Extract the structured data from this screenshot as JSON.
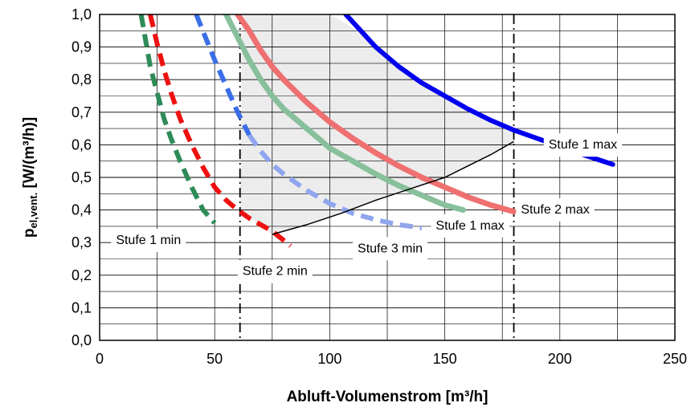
{
  "chart_data": {
    "type": "line",
    "title": "",
    "xlabel": "Abluft-Volumenstrom [m³/h]",
    "ylabel": {
      "main": "p",
      "sub": "el,vent.",
      "unit": " [W/(m³/h)]"
    },
    "xlim": [
      0,
      250
    ],
    "ylim": [
      0,
      1.0
    ],
    "xticks": [
      "0",
      "50",
      "100",
      "150",
      "200",
      "250"
    ],
    "yticks": [
      "0,0",
      "0,1",
      "0,2",
      "0,3",
      "0,4",
      "0,5",
      "0,6",
      "0,7",
      "0,8",
      "0,9",
      "1,0"
    ],
    "grid": true,
    "colors": {
      "blue_solid": "#0000ee",
      "red_solid": "#ee7070",
      "green_solid": "#88c09c",
      "blue_dashed_light": "#8fa5ee",
      "blue_dashed": "#3a6ee8",
      "red_dashed": "#ee1111",
      "green_dashed": "#2e8b57",
      "region": "#ececec",
      "envelope": "#000000"
    },
    "series": [
      {
        "style": "solid",
        "color": "blue_solid",
        "width": 6,
        "x": [
          107,
          120,
          130,
          140,
          150,
          160,
          170,
          180,
          190,
          200,
          210,
          223
        ],
        "y": [
          1.0,
          0.9,
          0.84,
          0.79,
          0.75,
          0.71,
          0.675,
          0.645,
          0.62,
          0.595,
          0.57,
          0.54
        ]
      },
      {
        "style": "solid",
        "color": "red_solid",
        "width": 7,
        "x": [
          60,
          65,
          70,
          75,
          80,
          90,
          100,
          110,
          120,
          130,
          140,
          150,
          160,
          170,
          180
        ],
        "y": [
          1.0,
          0.95,
          0.89,
          0.84,
          0.8,
          0.73,
          0.67,
          0.62,
          0.575,
          0.535,
          0.5,
          0.47,
          0.44,
          0.415,
          0.395
        ]
      },
      {
        "style": "solid",
        "color": "green_solid",
        "width": 7,
        "x": [
          55,
          60,
          65,
          70,
          75,
          80,
          90,
          100,
          110,
          120,
          130,
          140,
          150,
          158
        ],
        "y": [
          1.0,
          0.93,
          0.86,
          0.8,
          0.75,
          0.71,
          0.65,
          0.59,
          0.55,
          0.51,
          0.475,
          0.445,
          0.415,
          0.4
        ]
      },
      {
        "style": "dashed",
        "color": "blue_dashed",
        "width": 6,
        "x": [
          42,
          46,
          50,
          55,
          60,
          65
        ],
        "y": [
          1.0,
          0.93,
          0.86,
          0.78,
          0.7,
          0.63
        ]
      },
      {
        "style": "dashed",
        "color": "blue_dashed_light",
        "width": 6,
        "x": [
          65,
          70,
          75,
          80,
          90,
          100,
          110,
          120,
          130,
          140
        ],
        "y": [
          0.63,
          0.58,
          0.54,
          0.51,
          0.46,
          0.42,
          0.39,
          0.37,
          0.355,
          0.345
        ]
      },
      {
        "style": "dashed",
        "color": "red_dashed",
        "width": 6,
        "x": [
          22,
          25,
          28,
          31,
          35,
          40,
          45,
          50,
          55,
          60,
          65,
          70,
          75,
          83
        ],
        "y": [
          1.0,
          0.91,
          0.83,
          0.76,
          0.68,
          0.6,
          0.53,
          0.47,
          0.43,
          0.4,
          0.375,
          0.355,
          0.335,
          0.29
        ]
      },
      {
        "style": "dashed",
        "color": "green_dashed",
        "width": 6,
        "x": [
          18,
          20,
          22,
          25,
          28,
          31,
          35,
          40,
          45,
          50
        ],
        "y": [
          1.0,
          0.92,
          0.84,
          0.76,
          0.68,
          0.62,
          0.55,
          0.47,
          0.4,
          0.36
        ]
      }
    ],
    "envelope": {
      "x": [
        75,
        90,
        105,
        120,
        135,
        150,
        160,
        170,
        180
      ],
      "y": [
        0.325,
        0.355,
        0.39,
        0.43,
        0.465,
        0.5,
        0.535,
        0.57,
        0.61
      ]
    },
    "region": {
      "x": [
        61,
        75,
        90,
        105,
        120,
        135,
        150,
        160,
        170,
        180,
        180,
        170,
        160,
        150,
        140,
        130,
        120,
        110,
        100,
        90,
        80,
        70,
        62,
        61
      ],
      "y": [
        0.4,
        0.325,
        0.355,
        0.39,
        0.43,
        0.465,
        0.5,
        0.535,
        0.57,
        0.61,
        0.645,
        0.675,
        0.71,
        0.75,
        0.79,
        0.84,
        0.9,
        0.96,
        1.0,
        1.0,
        1.0,
        1.0,
        1.0,
        0.4
      ]
    },
    "vlines": [
      61,
      180
    ],
    "annotations": [
      {
        "text": "Stufe 1 max",
        "x": 193,
        "y": 0.603
      },
      {
        "text": "Stufe 2 max",
        "x": 181,
        "y": 0.404
      },
      {
        "text": "Stufe 1 max",
        "x": 144,
        "y": 0.355
      },
      {
        "text": "Stufe 3 min",
        "x": 110,
        "y": 0.285
      },
      {
        "text": "Stufe 1 min",
        "x": 5,
        "y": 0.31
      },
      {
        "text": "Stufe 2 min",
        "x": 60,
        "y": 0.215
      }
    ]
  }
}
